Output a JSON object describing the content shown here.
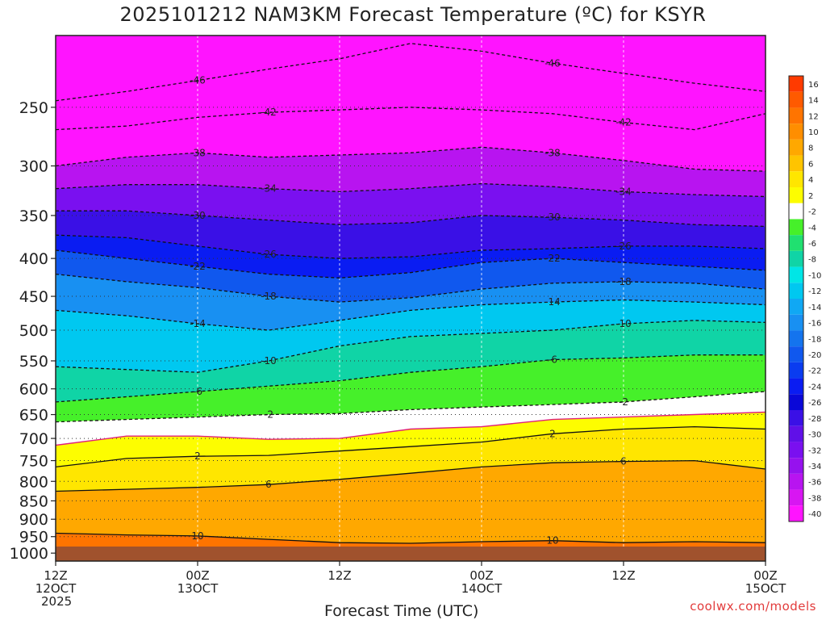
{
  "title": "2025101212 NAM3KM Forecast Temperature (ºC) for KSYR",
  "credit": "coolwx.com/models",
  "chart_data": {
    "type": "heatmap",
    "title": "2025101212 NAM3KM Forecast Temperature (ºC) for KSYR",
    "xlabel": "Forecast Time (UTC)",
    "ylabel": "",
    "y_scale": "log",
    "y_inverted": true,
    "y_ticks": [
      250,
      300,
      350,
      400,
      450,
      500,
      550,
      600,
      650,
      700,
      750,
      800,
      850,
      900,
      950,
      1000
    ],
    "y_range": [
      1025,
      200
    ],
    "x_range_hours": [
      0,
      60
    ],
    "x_ticks": [
      {
        "hour": 0,
        "lines": [
          "12Z",
          "12OCT",
          "2025"
        ]
      },
      {
        "hour": 12,
        "lines": [
          "00Z",
          "13OCT"
        ]
      },
      {
        "hour": 24,
        "lines": [
          "12Z"
        ]
      },
      {
        "hour": 36,
        "lines": [
          "00Z",
          "14OCT"
        ]
      },
      {
        "hour": 48,
        "lines": [
          "12Z"
        ]
      },
      {
        "hour": 60,
        "lines": [
          "00Z",
          "15OCT"
        ]
      }
    ],
    "colorbar": {
      "labels": [
        "16",
        "14",
        "12",
        "10",
        "8",
        "6",
        "4",
        "2",
        "-2",
        "-4",
        "-6",
        "-8",
        "-10",
        "-12",
        "-14",
        "-16",
        "-18",
        "-20",
        "-22",
        "-24",
        "-26",
        "-28",
        "-30",
        "-32",
        "-34",
        "-36",
        "-38",
        "-40"
      ],
      "colors": [
        "#ff3a00",
        "#ff5a00",
        "#ff7400",
        "#ff8e00",
        "#ffa800",
        "#ffc400",
        "#ffe600",
        "#fdfd00",
        "#ffffff",
        "#46f02a",
        "#20e070",
        "#10d4a6",
        "#00e6e6",
        "#00c8f0",
        "#10a8f4",
        "#1890f2",
        "#1474ee",
        "#1058ee",
        "#0a3cf0",
        "#0a1cf2",
        "#0a08d8",
        "#3a10e6",
        "#6010e8",
        "#7a10f0",
        "#9612ee",
        "#b814f0",
        "#d816f2",
        "#ff14ff"
      ]
    },
    "contour_labels": {
      "isotherms": [
        "-46",
        "-42",
        "-38",
        "-34",
        "-30",
        "-26",
        "-22",
        "-18",
        "-14",
        "-10",
        "-6",
        "-2",
        "2",
        "6",
        "10"
      ],
      "freezing_line": "0"
    },
    "series": [
      {
        "name": "-46",
        "hours": [
          0,
          6,
          12,
          18,
          24,
          30,
          36,
          42,
          48,
          54,
          60
        ],
        "values": [
          245,
          238,
          230,
          222,
          215,
          205,
          210,
          218,
          225,
          232,
          238
        ]
      },
      {
        "name": "-42",
        "hours": [
          0,
          6,
          12,
          18,
          24,
          30,
          36,
          42,
          48,
          54,
          60
        ],
        "values": [
          268,
          265,
          258,
          254,
          252,
          250,
          252,
          255,
          262,
          268,
          255
        ]
      },
      {
        "name": "-38",
        "hours": [
          0,
          6,
          12,
          18,
          24,
          30,
          36,
          42,
          48,
          54,
          60
        ],
        "values": [
          300,
          292,
          288,
          292,
          290,
          288,
          283,
          288,
          295,
          303,
          305
        ]
      },
      {
        "name": "-34",
        "hours": [
          0,
          6,
          12,
          18,
          24,
          30,
          36,
          42,
          48,
          54,
          60
        ],
        "values": [
          322,
          318,
          318,
          322,
          325,
          322,
          317,
          320,
          325,
          328,
          330
        ]
      },
      {
        "name": "-30",
        "hours": [
          0,
          6,
          12,
          18,
          24,
          30,
          36,
          42,
          48,
          54,
          60
        ],
        "values": [
          345,
          345,
          350,
          355,
          360,
          358,
          350,
          352,
          355,
          360,
          362
        ]
      },
      {
        "name": "-26",
        "hours": [
          0,
          6,
          12,
          18,
          24,
          30,
          36,
          42,
          48,
          54,
          60
        ],
        "values": [
          372,
          375,
          385,
          395,
          400,
          398,
          390,
          388,
          385,
          385,
          388
        ]
      },
      {
        "name": "-22",
        "hours": [
          0,
          6,
          12,
          18,
          24,
          30,
          36,
          42,
          48,
          54,
          60
        ],
        "values": [
          390,
          400,
          410,
          420,
          425,
          418,
          405,
          400,
          405,
          410,
          415
        ]
      },
      {
        "name": "-18",
        "hours": [
          0,
          6,
          12,
          18,
          24,
          30,
          36,
          42,
          48,
          54,
          60
        ],
        "values": [
          420,
          430,
          438,
          450,
          458,
          452,
          440,
          432,
          430,
          432,
          440
        ]
      },
      {
        "name": "-14",
        "hours": [
          0,
          6,
          12,
          18,
          24,
          30,
          36,
          42,
          48,
          54,
          60
        ],
        "values": [
          470,
          478,
          490,
          500,
          485,
          470,
          462,
          458,
          455,
          458,
          462
        ]
      },
      {
        "name": "-10",
        "hours": [
          0,
          6,
          12,
          18,
          24,
          30,
          36,
          42,
          48,
          54,
          60
        ],
        "values": [
          560,
          565,
          570,
          550,
          525,
          510,
          505,
          500,
          490,
          485,
          488
        ]
      },
      {
        "name": "-6",
        "hours": [
          0,
          6,
          12,
          18,
          24,
          30,
          36,
          42,
          48,
          54,
          60
        ],
        "values": [
          625,
          615,
          605,
          595,
          585,
          570,
          560,
          548,
          545,
          540,
          540
        ]
      },
      {
        "name": "-2",
        "hours": [
          0,
          6,
          12,
          18,
          24,
          30,
          36,
          42,
          48,
          54,
          60
        ],
        "values": [
          665,
          660,
          655,
          650,
          648,
          640,
          635,
          630,
          625,
          615,
          605
        ]
      },
      {
        "name": "2",
        "hours": [
          0,
          6,
          12,
          18,
          24,
          30,
          36,
          42,
          48,
          54,
          60
        ],
        "values": [
          765,
          745,
          740,
          738,
          728,
          718,
          708,
          690,
          680,
          675,
          680
        ]
      },
      {
        "name": "6",
        "hours": [
          0,
          6,
          12,
          18,
          24,
          30,
          36,
          42,
          48,
          54,
          60
        ],
        "values": [
          825,
          820,
          815,
          808,
          795,
          780,
          765,
          755,
          752,
          750,
          770
        ]
      },
      {
        "name": "10",
        "hours": [
          0,
          6,
          12,
          18,
          24,
          30,
          36,
          42,
          48,
          54,
          60
        ],
        "values": [
          940,
          945,
          948,
          958,
          968,
          970,
          965,
          962,
          968,
          965,
          968
        ]
      },
      {
        "name": "0",
        "hours": [
          0,
          6,
          12,
          18,
          24,
          30,
          36,
          42,
          48,
          54,
          60
        ],
        "values": [
          715,
          695,
          695,
          702,
          700,
          680,
          675,
          660,
          655,
          650,
          645
        ]
      }
    ]
  }
}
